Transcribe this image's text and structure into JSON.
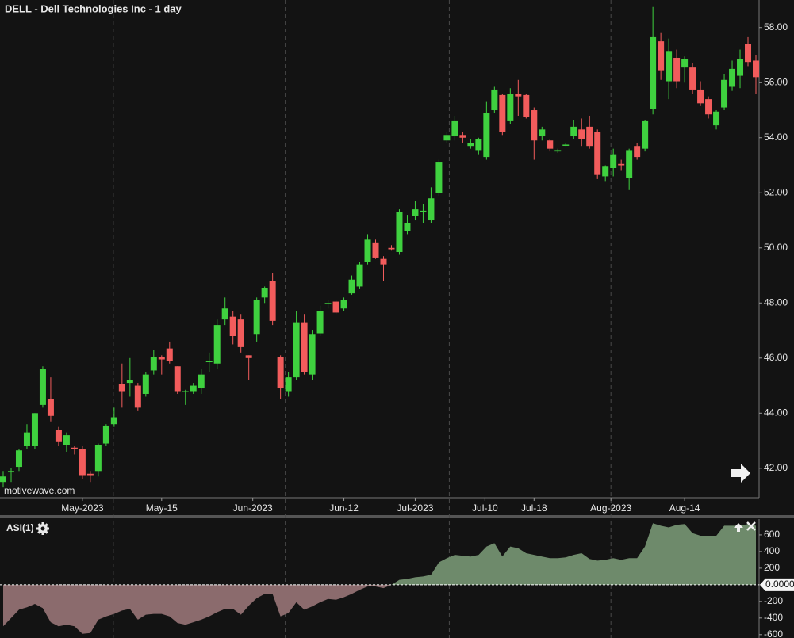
{
  "chart_data": [
    {
      "type": "candlestick",
      "title": "DELL - Dell Technologies Inc - 1 day",
      "watermark": "motivewave.com",
      "up_color": "#3fd13f",
      "down_color": "#f25c5c",
      "open": [
        41.5,
        41.85,
        42.05,
        42.8,
        42.8,
        44.3,
        44.5,
        43.4,
        42.85,
        42.75,
        42.7,
        41.8,
        41.9,
        42.9,
        43.6,
        45.05,
        45.1,
        45.0,
        44.7,
        45.55,
        46.05,
        46.35,
        45.7,
        44.8,
        44.8,
        44.9,
        45.85,
        45.8,
        47.4,
        47.5,
        47.4,
        46.1,
        46.85,
        48.2,
        48.8,
        46.05,
        44.8,
        45.3,
        47.3,
        45.4,
        46.9,
        48.0,
        48.05,
        47.8,
        48.35,
        48.6,
        49.5,
        50.2,
        49.6,
        50.0,
        49.85,
        50.6,
        51.15,
        51.3,
        51.0,
        52.0,
        53.9,
        54.05,
        54.1,
        53.7,
        53.55,
        53.3,
        55.0,
        55.55,
        54.6,
        55.6,
        55.55,
        55.0,
        54.05,
        53.9,
        53.5,
        53.75,
        54.05,
        54.3,
        54.4,
        54.2,
        52.6,
        52.9,
        53.05,
        52.55,
        53.7,
        53.6,
        55.05,
        57.5,
        56.05,
        56.9,
        56.55,
        56.55,
        55.75,
        55.4,
        54.45,
        55.1,
        55.85,
        56.25,
        57.4,
        56.8
      ],
      "high": [
        41.9,
        42.0,
        42.7,
        43.6,
        44.0,
        45.7,
        45.3,
        43.5,
        43.3,
        42.8,
        42.8,
        41.9,
        42.9,
        43.6,
        44.2,
        45.8,
        46.0,
        45.1,
        45.5,
        46.3,
        46.1,
        46.6,
        45.7,
        44.85,
        45.1,
        45.6,
        46.2,
        47.4,
        48.2,
        47.7,
        47.6,
        46.1,
        48.2,
        48.6,
        49.1,
        46.1,
        45.5,
        47.7,
        47.6,
        47.0,
        47.9,
        48.1,
        48.1,
        48.2,
        49.0,
        49.5,
        50.5,
        50.3,
        49.7,
        50.1,
        51.4,
        51.2,
        51.7,
        51.6,
        52.2,
        53.2,
        54.2,
        54.8,
        54.2,
        53.95,
        54.0,
        55.3,
        55.85,
        55.6,
        55.8,
        56.1,
        55.6,
        55.1,
        54.4,
        53.95,
        53.6,
        53.8,
        54.65,
        54.7,
        54.8,
        54.3,
        53.0,
        53.6,
        53.2,
        53.6,
        53.8,
        54.65,
        58.75,
        57.8,
        57.6,
        57.2,
        56.95,
        56.7,
        56.05,
        55.5,
        55.0,
        56.3,
        56.8,
        57.2,
        57.65,
        57.0
      ],
      "low": [
        41.3,
        41.5,
        41.9,
        42.7,
        42.7,
        44.2,
        43.7,
        42.8,
        42.6,
        42.5,
        41.6,
        41.5,
        41.7,
        42.8,
        43.5,
        44.2,
        44.6,
        44.1,
        44.6,
        45.4,
        45.4,
        45.8,
        44.7,
        44.3,
        44.7,
        44.7,
        45.5,
        45.6,
        47.2,
        46.5,
        46.2,
        45.2,
        46.6,
        48.0,
        47.2,
        44.5,
        44.6,
        45.2,
        45.4,
        45.2,
        46.8,
        47.8,
        47.6,
        47.7,
        48.3,
        48.5,
        49.4,
        49.6,
        48.8,
        49.9,
        49.75,
        50.5,
        51.0,
        50.9,
        50.9,
        51.9,
        53.8,
        53.9,
        53.8,
        53.6,
        53.4,
        53.2,
        54.9,
        54.1,
        54.5,
        54.8,
        54.7,
        53.2,
        53.9,
        53.5,
        53.45,
        53.7,
        53.95,
        53.7,
        53.6,
        52.5,
        52.4,
        52.6,
        52.8,
        52.1,
        53.2,
        53.5,
        54.85,
        56.1,
        55.4,
        55.8,
        56.0,
        55.6,
        55.15,
        54.7,
        54.3,
        55.0,
        55.7,
        55.8,
        56.6,
        55.6
      ],
      "close": [
        41.7,
        41.9,
        42.65,
        43.3,
        44.0,
        45.6,
        43.9,
        42.95,
        43.2,
        42.7,
        41.75,
        41.75,
        42.85,
        43.55,
        43.85,
        44.8,
        45.2,
        44.2,
        45.4,
        46.05,
        45.95,
        45.9,
        44.8,
        44.8,
        45.0,
        45.4,
        45.9,
        47.2,
        47.8,
        46.8,
        46.4,
        46.0,
        48.1,
        48.55,
        47.35,
        44.9,
        45.3,
        47.3,
        45.5,
        46.85,
        47.7,
        48.0,
        47.65,
        48.1,
        48.85,
        49.4,
        50.3,
        49.65,
        49.4,
        49.95,
        51.3,
        50.9,
        51.4,
        51.35,
        51.8,
        53.1,
        54.1,
        54.6,
        54.0,
        53.8,
        53.95,
        54.9,
        55.75,
        54.2,
        55.6,
        55.5,
        54.75,
        53.9,
        54.3,
        53.6,
        53.55,
        53.75,
        54.4,
        53.95,
        53.7,
        52.65,
        52.95,
        53.4,
        53.0,
        53.55,
        53.3,
        54.6,
        57.65,
        56.45,
        57.15,
        56.05,
        56.85,
        55.75,
        55.25,
        54.85,
        54.95,
        56.1,
        56.5,
        56.85,
        56.75,
        56.2
      ],
      "ylim": [
        40.93,
        59.0
      ],
      "yticks": [
        {
          "value": 42,
          "label": "42.00"
        },
        {
          "value": 44,
          "label": "44.00"
        },
        {
          "value": 46,
          "label": "46.00"
        },
        {
          "value": 48,
          "label": "48.00"
        },
        {
          "value": 50,
          "label": "50.00"
        },
        {
          "value": 52,
          "label": "52.00"
        },
        {
          "value": 54,
          "label": "54.00"
        },
        {
          "value": 56,
          "label": "56.00"
        },
        {
          "value": 58,
          "label": "58.00"
        }
      ],
      "xticks": [
        {
          "value": 10,
          "label": "May-2023"
        },
        {
          "value": 20,
          "label": "May-15"
        },
        {
          "value": 31.5,
          "label": "Jun-2023"
        },
        {
          "value": 43,
          "label": "Jun-12"
        },
        {
          "value": 52,
          "label": "Jul-2023"
        },
        {
          "value": 60.8,
          "label": "Jul-10"
        },
        {
          "value": 67,
          "label": "Jul-18"
        },
        {
          "value": 76.7,
          "label": "Aug-2023"
        },
        {
          "value": 86,
          "label": "Aug-14"
        }
      ],
      "xgrid": [
        13.9,
        35.6,
        56.3,
        76.7
      ]
    },
    {
      "type": "area",
      "title": "ASI(1)",
      "pos_color": "#6e8a6b",
      "neg_color": "#8b6b6d",
      "values": [
        -500,
        -400,
        -300,
        -270,
        -230,
        -280,
        -450,
        -500,
        -480,
        -500,
        -590,
        -580,
        -420,
        -380,
        -350,
        -310,
        -290,
        -420,
        -360,
        -350,
        -350,
        -380,
        -460,
        -480,
        -450,
        -420,
        -380,
        -330,
        -290,
        -290,
        -360,
        -250,
        -160,
        -110,
        -110,
        -380,
        -340,
        -210,
        -300,
        -260,
        -210,
        -170,
        -180,
        -150,
        -110,
        -60,
        -20,
        -20,
        -40,
        0,
        60,
        70,
        90,
        100,
        120,
        270,
        320,
        360,
        350,
        340,
        360,
        460,
        500,
        340,
        460,
        440,
        380,
        360,
        340,
        320,
        320,
        330,
        360,
        380,
        310,
        290,
        300,
        320,
        300,
        320,
        320,
        460,
        740,
        710,
        690,
        720,
        730,
        620,
        590,
        590,
        590,
        710,
        710,
        710,
        730,
        710
      ],
      "ylim": [
        -640,
        790
      ],
      "yticks": [
        600,
        400,
        200,
        {
          "value": 0,
          "label": "0.0000"
        },
        -200,
        -400,
        -600
      ]
    }
  ]
}
